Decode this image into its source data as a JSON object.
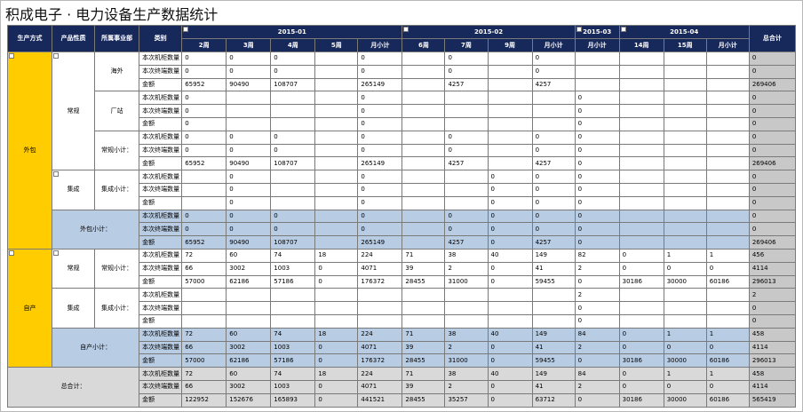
{
  "title": "积成电子 · 电力设备生产数据统计",
  "header": {
    "row1": [
      "生产方式",
      "产品性质",
      "所属事业部",
      "类别"
    ],
    "months": [
      "2015-01",
      "2015-02",
      "2015-03",
      "2015-04"
    ],
    "total": "总合计",
    "weeks": [
      "2周",
      "3周",
      "4周",
      "5周",
      "月小计",
      "6周",
      "7周",
      "9周",
      "月小计",
      "月小计",
      "14周",
      "15周",
      "月小计"
    ]
  },
  "rows": [
    [
      "本次机柜数量",
      "0",
      "0",
      "0",
      "",
      "0",
      "",
      "0",
      "",
      "0",
      "",
      "",
      "",
      "",
      "0"
    ],
    [
      "本次终端数量",
      "0",
      "0",
      "0",
      "",
      "0",
      "",
      "0",
      "",
      "0",
      "",
      "",
      "",
      "",
      "0"
    ],
    [
      "金额",
      "65952",
      "90490",
      "108707",
      "",
      "265149",
      "",
      "4257",
      "",
      "4257",
      "",
      "",
      "",
      "",
      "269406"
    ],
    [
      "本次机柜数量",
      "0",
      "",
      "",
      "",
      "0",
      "",
      "",
      "",
      "",
      "0",
      "",
      "",
      "",
      "0"
    ],
    [
      "本次终端数量",
      "0",
      "",
      "",
      "",
      "0",
      "",
      "",
      "",
      "",
      "0",
      "",
      "",
      "",
      "0"
    ],
    [
      "金额",
      "0",
      "",
      "",
      "",
      "0",
      "",
      "",
      "",
      "",
      "0",
      "",
      "",
      "",
      "0"
    ],
    [
      "本次机柜数量",
      "0",
      "0",
      "0",
      "",
      "0",
      "",
      "0",
      "",
      "0",
      "0",
      "",
      "",
      "",
      "0"
    ],
    [
      "本次终端数量",
      "0",
      "0",
      "0",
      "",
      "0",
      "",
      "0",
      "",
      "0",
      "0",
      "",
      "",
      "",
      "0"
    ],
    [
      "金额",
      "65952",
      "90490",
      "108707",
      "",
      "265149",
      "",
      "4257",
      "",
      "4257",
      "0",
      "",
      "",
      "",
      "269406"
    ],
    [
      "本次机柜数量",
      "",
      "0",
      "",
      "",
      "0",
      "",
      "",
      "0",
      "0",
      "0",
      "",
      "",
      "",
      "0"
    ],
    [
      "本次终端数量",
      "",
      "0",
      "",
      "",
      "0",
      "",
      "",
      "0",
      "0",
      "0",
      "",
      "",
      "",
      "0"
    ],
    [
      "金额",
      "",
      "0",
      "",
      "",
      "0",
      "",
      "",
      "0",
      "0",
      "0",
      "",
      "",
      "",
      "0"
    ],
    [
      "本次机柜数量",
      "0",
      "0",
      "0",
      "",
      "0",
      "",
      "0",
      "0",
      "0",
      "0",
      "",
      "",
      "",
      "0"
    ],
    [
      "本次终端数量",
      "0",
      "0",
      "0",
      "",
      "0",
      "",
      "0",
      "0",
      "0",
      "0",
      "",
      "",
      "",
      "0"
    ],
    [
      "金额",
      "65952",
      "90490",
      "108707",
      "",
      "265149",
      "",
      "4257",
      "0",
      "4257",
      "0",
      "",
      "",
      "",
      "269406"
    ],
    [
      "本次机柜数量",
      "72",
      "60",
      "74",
      "18",
      "224",
      "71",
      "38",
      "40",
      "149",
      "82",
      "0",
      "1",
      "1",
      "456"
    ],
    [
      "本次终端数量",
      "66",
      "3002",
      "1003",
      "0",
      "4071",
      "39",
      "2",
      "0",
      "41",
      "2",
      "0",
      "0",
      "0",
      "4114"
    ],
    [
      "金额",
      "57000",
      "62186",
      "57186",
      "0",
      "176372",
      "28455",
      "31000",
      "0",
      "59455",
      "0",
      "30186",
      "30000",
      "60186",
      "296013"
    ],
    [
      "本次机柜数量",
      "",
      "",
      "",
      "",
      "",
      "",
      "",
      "",
      "",
      "2",
      "",
      "",
      "",
      "2"
    ],
    [
      "本次终端数量",
      "",
      "",
      "",
      "",
      "",
      "",
      "",
      "",
      "",
      "0",
      "",
      "",
      "",
      "0"
    ],
    [
      "金额",
      "",
      "",
      "",
      "",
      "",
      "",
      "",
      "",
      "",
      "0",
      "",
      "",
      "",
      "0"
    ],
    [
      "本次机柜数量",
      "72",
      "60",
      "74",
      "18",
      "224",
      "71",
      "38",
      "40",
      "149",
      "84",
      "0",
      "1",
      "1",
      "458"
    ],
    [
      "本次终端数量",
      "66",
      "3002",
      "1003",
      "0",
      "4071",
      "39",
      "2",
      "0",
      "41",
      "2",
      "0",
      "0",
      "0",
      "4114"
    ],
    [
      "金额",
      "57000",
      "62186",
      "57186",
      "0",
      "176372",
      "28455",
      "31000",
      "0",
      "59455",
      "0",
      "30186",
      "30000",
      "60186",
      "296013"
    ],
    [
      "本次机柜数量",
      "72",
      "60",
      "74",
      "18",
      "224",
      "71",
      "38",
      "40",
      "149",
      "84",
      "0",
      "1",
      "1",
      "458"
    ],
    [
      "本次终端数量",
      "66",
      "3002",
      "1003",
      "0",
      "4071",
      "39",
      "2",
      "0",
      "41",
      "2",
      "0",
      "0",
      "0",
      "4114"
    ],
    [
      "金额",
      "122952",
      "152676",
      "165893",
      "0",
      "441521",
      "28455",
      "35257",
      "0",
      "63712",
      "0",
      "30186",
      "30000",
      "60186",
      "565419"
    ]
  ],
  "groups": {
    "waibao": "外包",
    "zichan": "自产",
    "changgui": "常规",
    "jicheng": "集成",
    "haiwai": "海外",
    "changzhan": "厂站",
    "changgui_sub": "常规小计：",
    "jicheng_sub": "集成小计：",
    "waibao_sub": "外包小计：",
    "zichan_sub": "自产小计：",
    "grand": "总合计："
  }
}
